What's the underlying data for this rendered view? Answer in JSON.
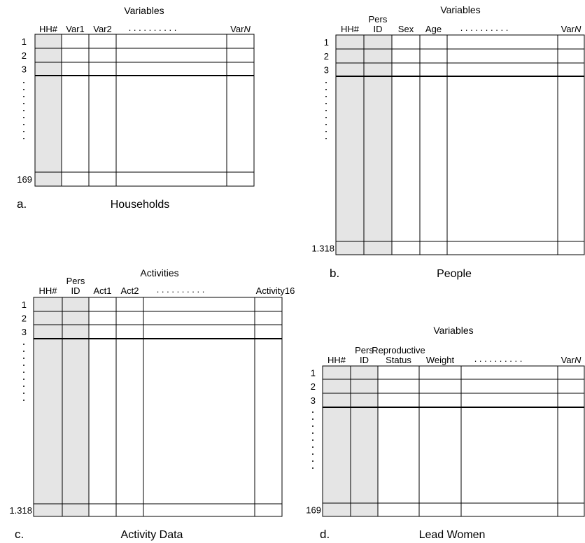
{
  "colors": {
    "key_fill": "#e5e5e5",
    "line": "#000000",
    "background": "#ffffff"
  },
  "panels": [
    {
      "id": "a",
      "heading": "Variables",
      "letter": "a.",
      "caption": "Households",
      "columns": [
        {
          "label": "HH#",
          "key": true
        },
        {
          "label": "Var1",
          "key": false
        },
        {
          "label": "Var2",
          "key": false
        },
        {
          "label": "",
          "key": false
        },
        {
          "label": "VarN",
          "key": false,
          "italic_suffix": "N"
        }
      ],
      "header_dots": ". . . . . . . . . .",
      "row_labels": [
        "1",
        "2",
        "3"
      ],
      "last_row_label": "169"
    },
    {
      "id": "b",
      "heading": "Variables",
      "letter": "b.",
      "caption": "People",
      "columns": [
        {
          "label": "HH#",
          "key": true
        },
        {
          "label": "Pers",
          "label2": "ID",
          "key": true
        },
        {
          "label": "Sex",
          "key": false
        },
        {
          "label": "Age",
          "key": false
        },
        {
          "label": "",
          "key": false
        },
        {
          "label": "VarN",
          "key": false,
          "italic_suffix": "N"
        }
      ],
      "header_dots": ". . . . . . . . . .",
      "row_labels": [
        "1",
        "2",
        "3"
      ],
      "last_row_label": "1.318"
    },
    {
      "id": "c",
      "heading": "Activities",
      "letter": "c.",
      "caption": "Activity Data",
      "columns": [
        {
          "label": "HH#",
          "key": true
        },
        {
          "label": "Pers",
          "label2": "ID",
          "key": true
        },
        {
          "label": "Act1",
          "key": false
        },
        {
          "label": "Act2",
          "key": false
        },
        {
          "label": "",
          "key": false
        },
        {
          "label": "Activity16",
          "key": false
        }
      ],
      "header_dots": ". . . . . . . . . .",
      "row_labels": [
        "1",
        "2",
        "3"
      ],
      "last_row_label": "1.318"
    },
    {
      "id": "d",
      "heading": "Variables",
      "letter": "d.",
      "caption": "Lead Women",
      "columns": [
        {
          "label": "HH#",
          "key": true
        },
        {
          "label": "Pers",
          "label2": "ID",
          "key": true
        },
        {
          "label": "Reproductive",
          "label2": "Status",
          "key": false
        },
        {
          "label": "Weight",
          "key": false
        },
        {
          "label": "",
          "key": false
        },
        {
          "label": "VarN",
          "key": false,
          "italic_suffix": "N"
        }
      ],
      "header_dots": ". . . . . . . . . .",
      "row_labels": [
        "1",
        "2",
        "3"
      ],
      "last_row_label": "169"
    }
  ]
}
